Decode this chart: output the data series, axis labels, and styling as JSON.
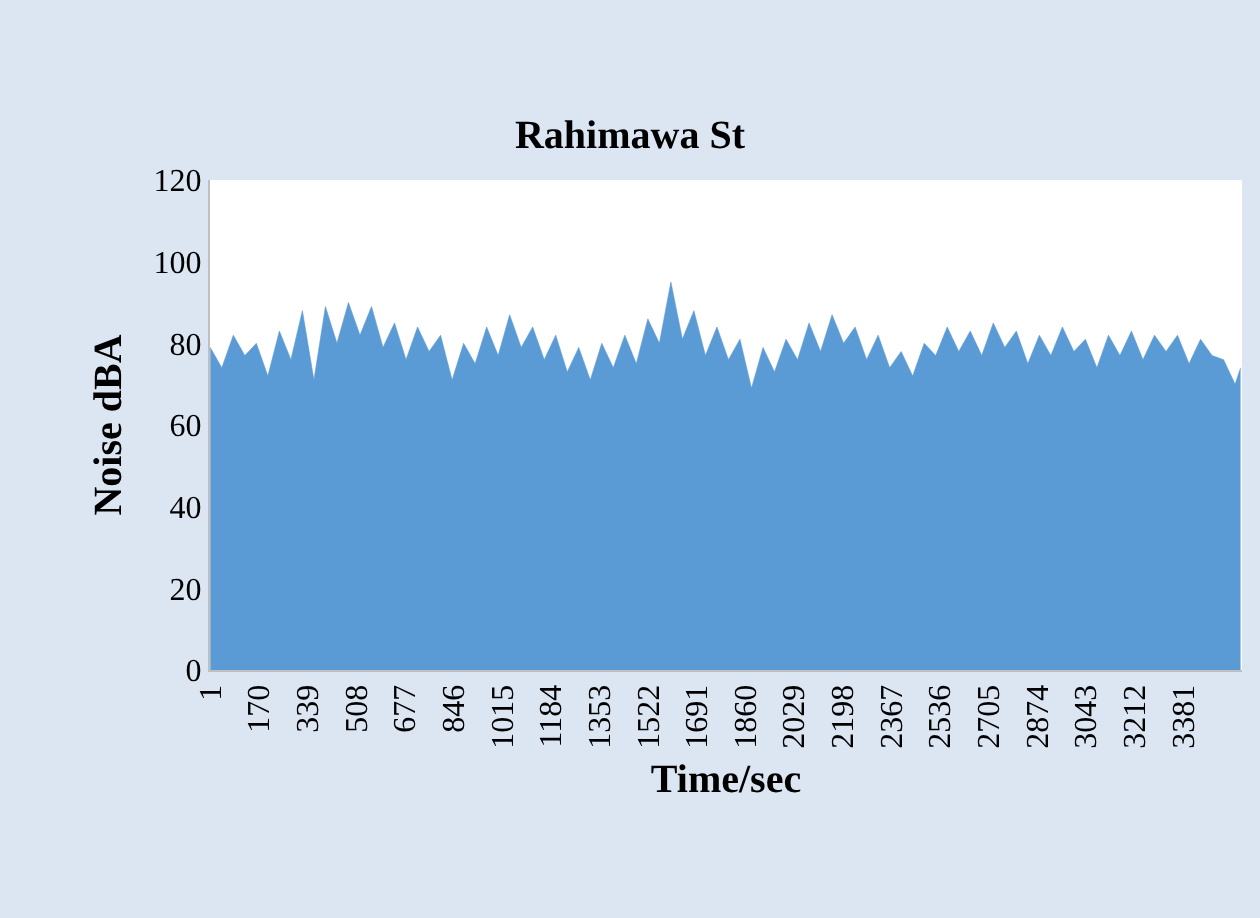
{
  "chart_data": {
    "type": "area",
    "title": "Rahimawa St",
    "xlabel": "Time/sec",
    "ylabel": "Noise dBA",
    "color": "#5b9bd5",
    "x": [
      1,
      41,
      81,
      121,
      161,
      201,
      241,
      281,
      321,
      361,
      401,
      441,
      481,
      521,
      561,
      601,
      641,
      681,
      721,
      761,
      801,
      841,
      881,
      921,
      961,
      1001,
      1041,
      1081,
      1121,
      1161,
      1201,
      1241,
      1281,
      1321,
      1361,
      1401,
      1441,
      1481,
      1521,
      1561,
      1601,
      1641,
      1681,
      1721,
      1761,
      1801,
      1841,
      1881,
      1921,
      1961,
      2001,
      2041,
      2081,
      2121,
      2161,
      2201,
      2241,
      2281,
      2321,
      2361,
      2401,
      2441,
      2481,
      2521,
      2561,
      2601,
      2641,
      2681,
      2721,
      2761,
      2801,
      2841,
      2881,
      2921,
      2961,
      3001,
      3041,
      3081,
      3121,
      3161,
      3201,
      3241,
      3281,
      3321,
      3361,
      3401,
      3441,
      3481,
      3521,
      3561,
      3580
    ],
    "values": [
      79,
      74,
      82,
      77,
      80,
      72,
      83,
      76,
      88,
      71,
      89,
      80,
      90,
      82,
      89,
      79,
      85,
      76,
      84,
      78,
      82,
      71,
      80,
      75,
      84,
      77,
      87,
      79,
      84,
      76,
      82,
      73,
      79,
      71,
      80,
      74,
      82,
      75,
      86,
      80,
      95,
      81,
      88,
      77,
      84,
      76,
      81,
      69,
      79,
      73,
      81,
      76,
      85,
      78,
      87,
      80,
      84,
      76,
      82,
      74,
      78,
      72,
      80,
      77,
      84,
      78,
      83,
      77,
      85,
      79,
      83,
      75,
      82,
      77,
      84,
      78,
      81,
      74,
      82,
      77,
      83,
      76,
      82,
      78,
      82,
      75,
      81,
      77,
      76,
      70,
      74
    ],
    "xlim": [
      0,
      3585
    ],
    "xticks": [
      1,
      170,
      339,
      508,
      677,
      846,
      1015,
      1184,
      1353,
      1522,
      1691,
      1860,
      2029,
      2198,
      2367,
      2536,
      2705,
      2874,
      3043,
      3212,
      3381
    ],
    "ylim": [
      0,
      120
    ],
    "yticks": [
      0,
      20,
      40,
      60,
      80,
      100,
      120
    ]
  }
}
